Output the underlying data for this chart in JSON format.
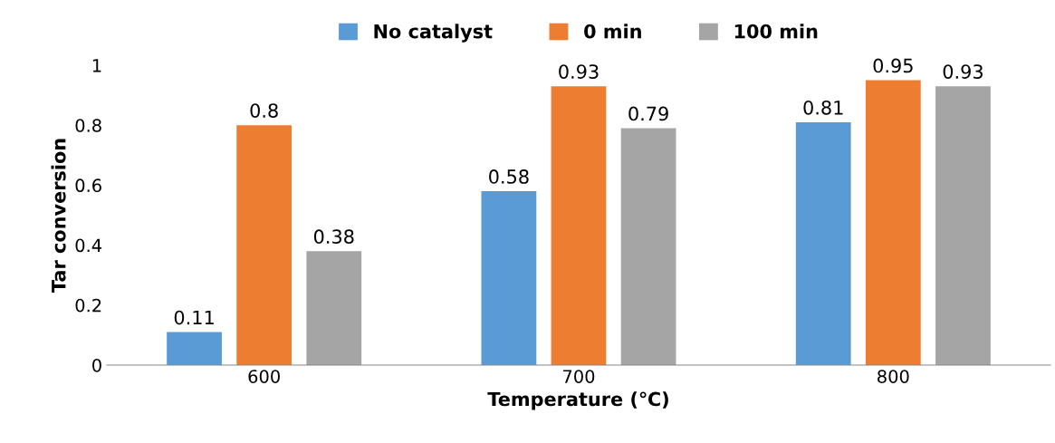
{
  "chart_data": {
    "type": "bar",
    "xlabel": "Temperature (℃)",
    "ylabel": "Tar conversion",
    "categories": [
      "600",
      "700",
      "800"
    ],
    "series": [
      {
        "name": "No catalyst",
        "color": "#5b9bd5",
        "values": [
          0.11,
          0.58,
          0.81
        ]
      },
      {
        "name": "0 min",
        "color": "#ed7d31",
        "values": [
          0.8,
          0.93,
          0.95
        ]
      },
      {
        "name": "100 min",
        "color": "#a5a5a5",
        "values": [
          0.38,
          0.79,
          0.93
        ]
      }
    ],
    "ylim": [
      0,
      1
    ],
    "yticks": [
      0,
      0.2,
      0.4,
      0.6,
      0.8,
      1
    ],
    "grid": false,
    "legend": "top",
    "data_labels": true
  }
}
